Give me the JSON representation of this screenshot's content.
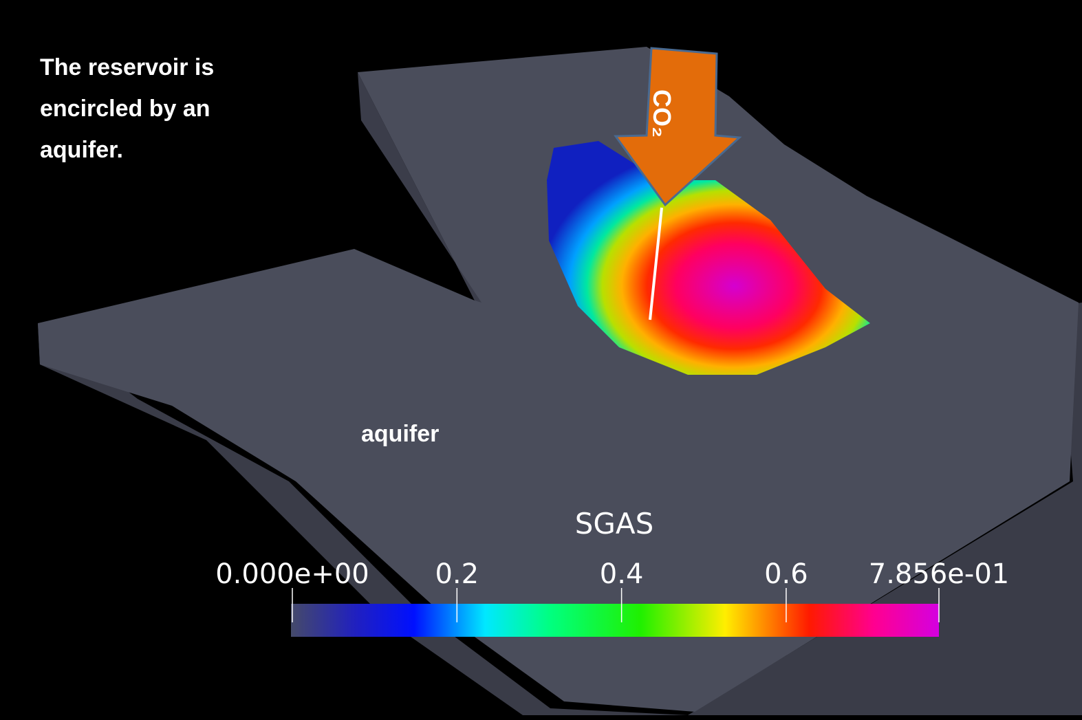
{
  "annotation": "The reservoir is encircled by an aquifer.",
  "aquifer_label": "aquifer",
  "arrow_label": "CO₂",
  "colorbar": {
    "title": "SGAS",
    "lim": [
      0,
      0.7856
    ],
    "ticks": [
      {
        "value": 0,
        "label": "0.000e+00"
      },
      0.2,
      0.4,
      0.6,
      {
        "value": 0.7856,
        "label": "7.856e-01"
      }
    ]
  }
}
